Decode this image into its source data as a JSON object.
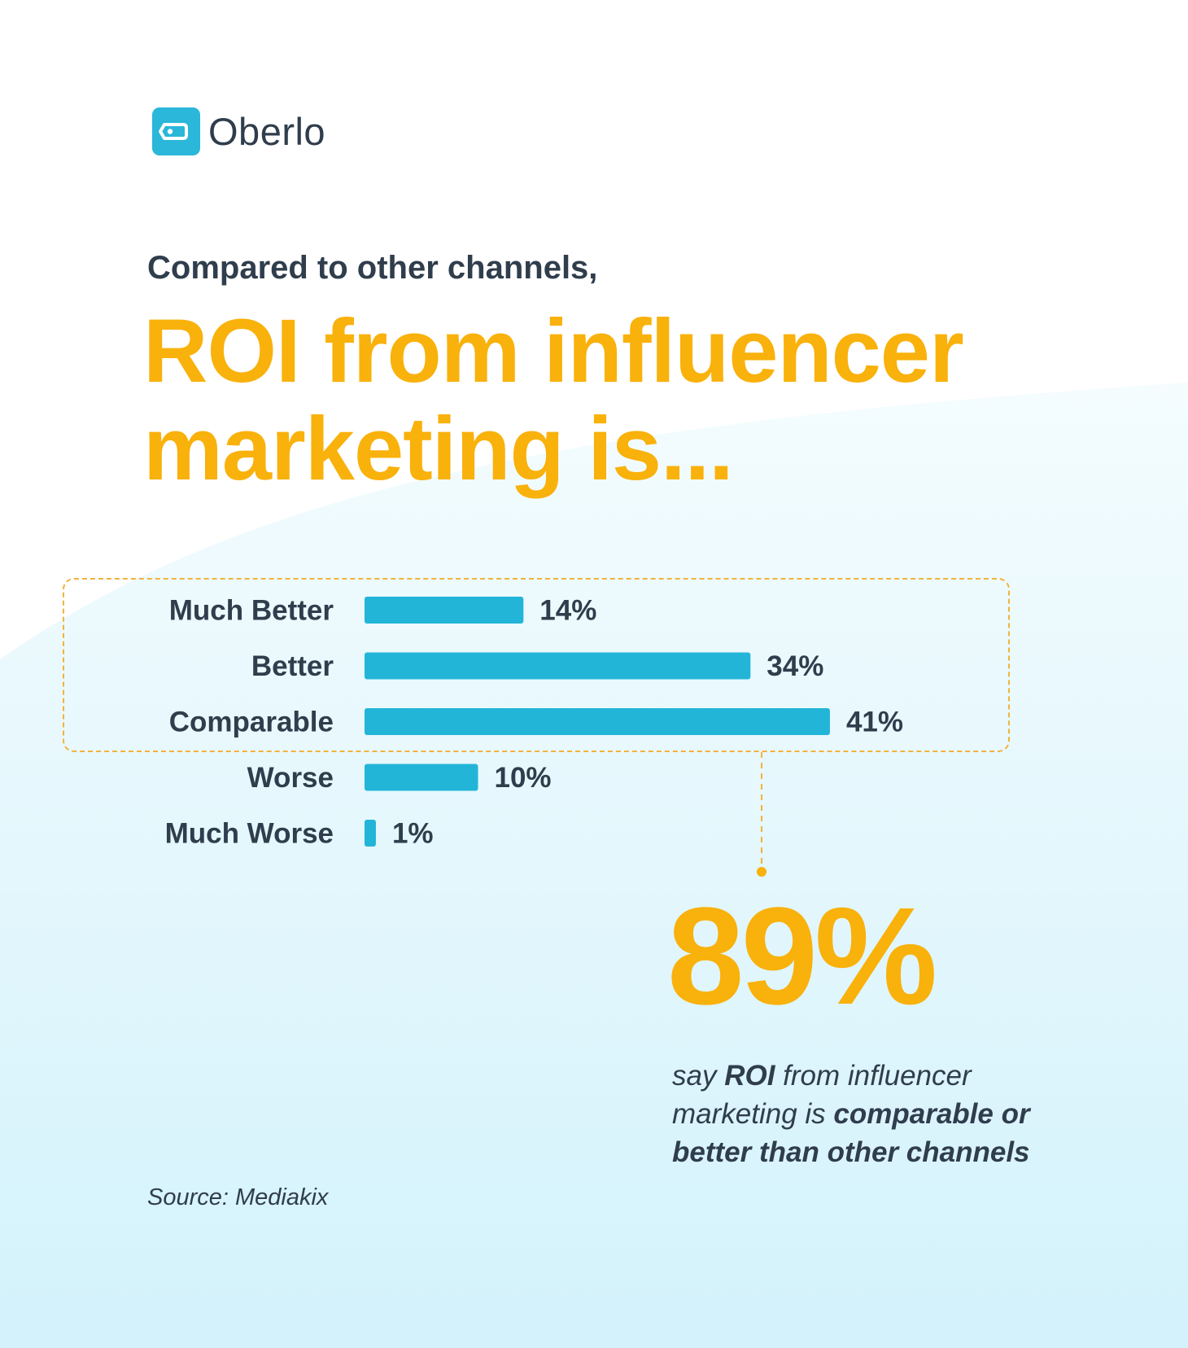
{
  "brand": {
    "logo_text": "Oberlo",
    "logo_icon": "tag-icon",
    "accent_color": "#2ab7d9",
    "highlight_color": "#f9b10b",
    "text_color": "#2f3d4c"
  },
  "subtitle": "Compared to other channels,",
  "headline": {
    "line1": "ROI from influencer",
    "line2": "marketing is..."
  },
  "chart_data": {
    "type": "bar",
    "orientation": "horizontal",
    "categories": [
      "Much Better",
      "Better",
      "Comparable",
      "Worse",
      "Much Worse"
    ],
    "values": [
      14,
      34,
      41,
      10,
      1
    ],
    "value_labels": [
      "14%",
      "34%",
      "41%",
      "10%",
      "1%"
    ],
    "unit": "%",
    "bar_color": "#23b5d8",
    "highlighted_categories": [
      "Much Better",
      "Better",
      "Comparable"
    ]
  },
  "callout": {
    "stat": "89%",
    "desc_1": "say ",
    "desc_2": "ROI",
    "desc_3": " from influencer marketing is ",
    "desc_4": "comparable or better than other channels"
  },
  "source": "Source: Mediakix"
}
